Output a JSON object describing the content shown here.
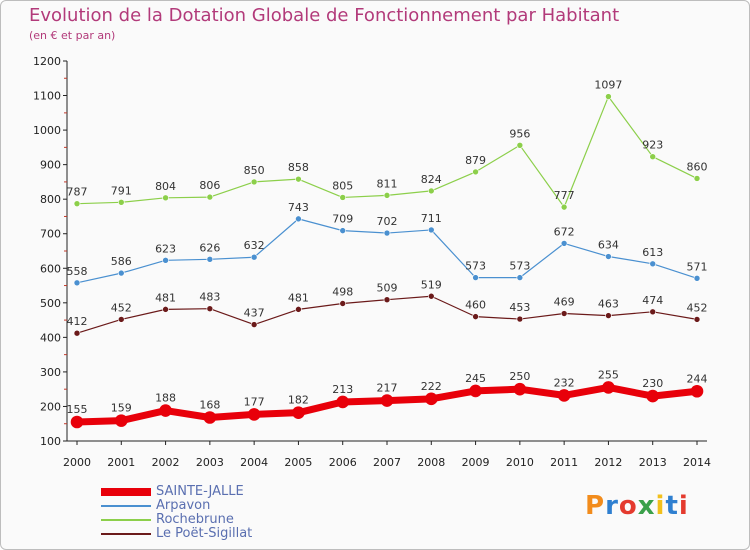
{
  "title": "Evolution de la Dotation Globale de Fonctionnement par Habitant",
  "subtitle": "(en € et par an)",
  "logo_text": "Proxiti",
  "chart_data": {
    "type": "line",
    "title": "Evolution de la Dotation Globale de Fonctionnement par Habitant",
    "subtitle": "(en € et par an)",
    "categories": [
      "2000",
      "2001",
      "2002",
      "2003",
      "2004",
      "2005",
      "2006",
      "2007",
      "2008",
      "2009",
      "2010",
      "2011",
      "2012",
      "2013",
      "2014"
    ],
    "ylim": [
      100,
      1200
    ],
    "yticks": [
      100,
      200,
      300,
      400,
      500,
      600,
      700,
      800,
      900,
      1000,
      1100,
      1200
    ],
    "grid": false,
    "legend_position": "bottom-left",
    "series": [
      {
        "name": "SAINTE-JALLE",
        "color": "#e8000a",
        "values": [
          155,
          159,
          188,
          168,
          177,
          182,
          213,
          217,
          222,
          245,
          250,
          232,
          255,
          230,
          244
        ]
      },
      {
        "name": "Arpavon",
        "color": "#4a90d0",
        "values": [
          558,
          586,
          623,
          626,
          632,
          743,
          709,
          702,
          711,
          573,
          573,
          672,
          634,
          613,
          571
        ]
      },
      {
        "name": "Rochebrune",
        "color": "#8ccf4a",
        "values": [
          787,
          791,
          804,
          806,
          850,
          858,
          805,
          811,
          824,
          879,
          956,
          777,
          1097,
          923,
          860
        ]
      },
      {
        "name": "Le Poët-Sigillat",
        "color": "#6b1a1a",
        "values": [
          412,
          452,
          481,
          483,
          437,
          481,
          498,
          509,
          519,
          460,
          453,
          469,
          463,
          474,
          452
        ]
      }
    ]
  }
}
